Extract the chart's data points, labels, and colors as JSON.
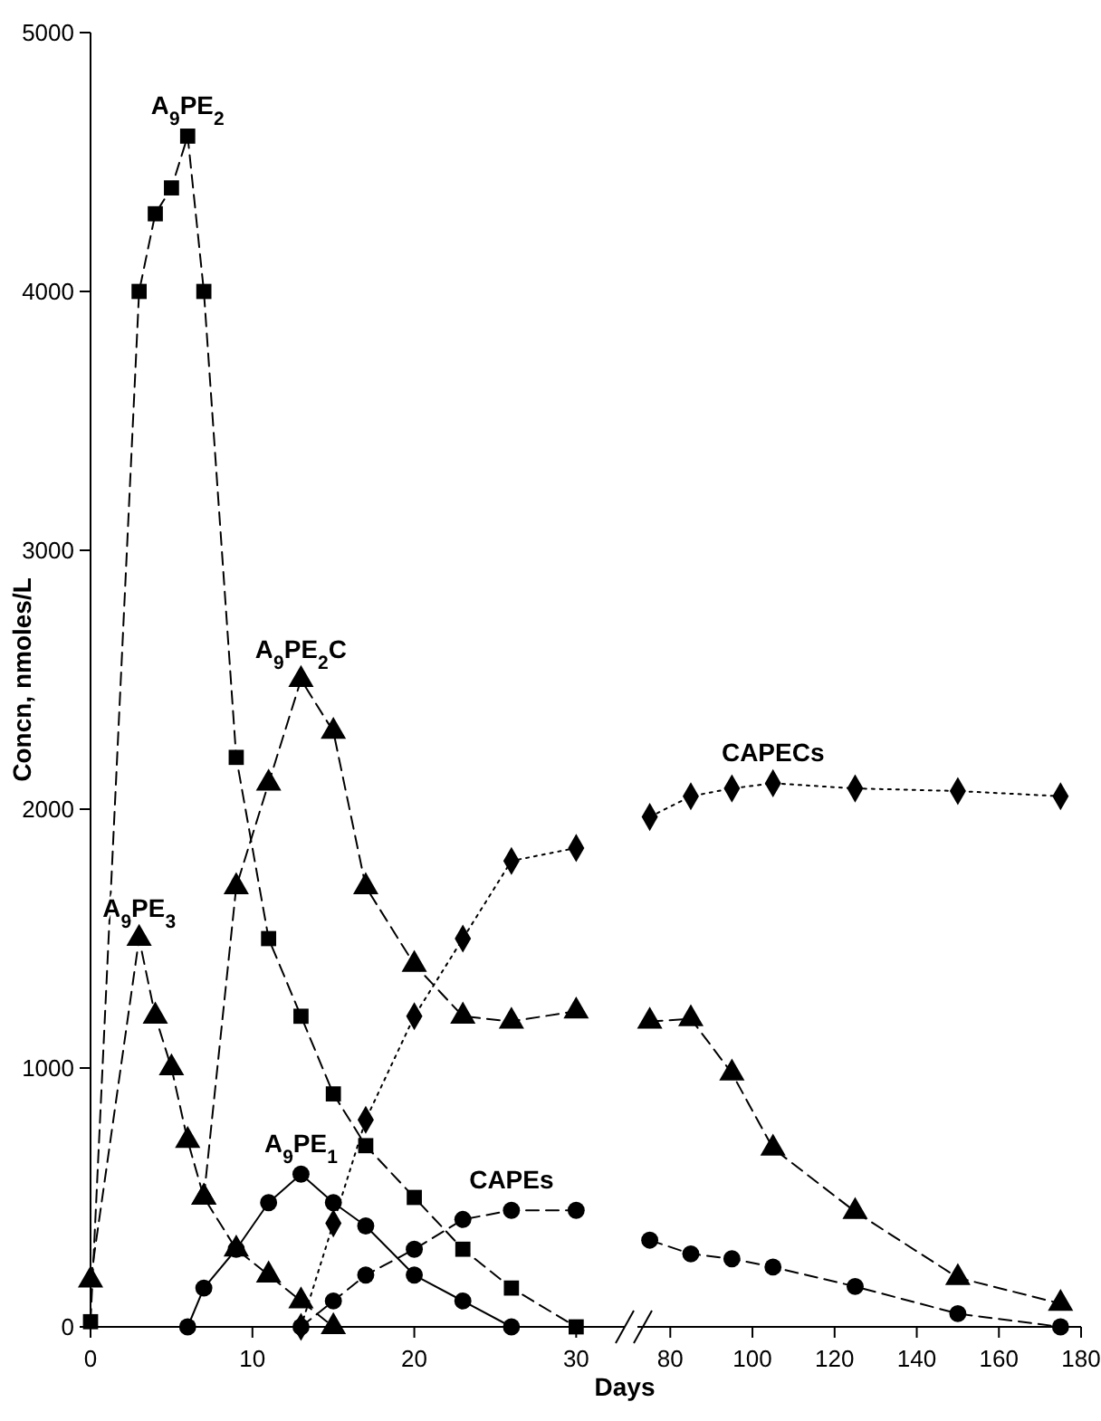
{
  "chart_data": [
    {
      "type": "line",
      "xlabel": "Days",
      "ylabel": "Concn, nmoles/L",
      "xlim": [
        0,
        33
      ],
      "xticks": [
        0,
        10,
        20,
        30
      ],
      "ylim": [
        0,
        5000
      ],
      "yticks": [
        0,
        1000,
        2000,
        3000,
        4000,
        5000
      ],
      "series": [
        {
          "name": "A$_{9}$PE$_{2}$",
          "color": "#000000",
          "marker": "square",
          "line_style": "dashed",
          "x": [
            0,
            3,
            4,
            5,
            6,
            7,
            9,
            11,
            13,
            15,
            17,
            20,
            23,
            26,
            30
          ],
          "values": [
            20,
            4000,
            4300,
            4400,
            4600,
            4000,
            2200,
            1500,
            1200,
            900,
            700,
            500,
            300,
            150,
            0
          ]
        },
        {
          "name": "A$_{9}$PE$_{3}$",
          "color": "#000000",
          "marker": "triangle",
          "line_style": "dashed",
          "x": [
            0,
            3,
            4,
            5,
            6,
            7,
            9,
            11,
            13,
            15
          ],
          "values": [
            180,
            1500,
            1200,
            1000,
            720,
            500,
            300,
            200,
            100,
            0
          ]
        },
        {
          "name": "A$_{9}$PE$_{2}$C",
          "color": "#000000",
          "marker": "triangle",
          "line_style": "dashed",
          "x": [
            7,
            9,
            11,
            13,
            15,
            17,
            20,
            23,
            26,
            30
          ],
          "values": [
            500,
            1700,
            2100,
            2500,
            2300,
            1700,
            1400,
            1200,
            1180,
            1220
          ]
        },
        {
          "name": "A$_{9}$PE$_{1}$",
          "color": "#000000",
          "marker": "circle",
          "line_style": "solid",
          "x": [
            6,
            7,
            9,
            11,
            13,
            15,
            17,
            20,
            23,
            26
          ],
          "values": [
            0,
            150,
            300,
            480,
            590,
            480,
            390,
            200,
            100,
            0
          ]
        },
        {
          "name": "CAPEs",
          "color": "#000000",
          "marker": "circle",
          "line_style": "dashed",
          "x": [
            13,
            15,
            17,
            20,
            23,
            26,
            30
          ],
          "values": [
            0,
            100,
            200,
            300,
            415,
            450,
            450
          ]
        },
        {
          "color": "#000000",
          "marker": "diamond",
          "line_style": "dotted",
          "x": [
            13,
            15,
            17,
            20,
            23,
            26,
            30
          ],
          "values": [
            0,
            400,
            800,
            1200,
            1500,
            1800,
            1850
          ]
        }
      ]
    },
    {
      "type": "line",
      "xlim": [
        72,
        180
      ],
      "xticks": [
        80,
        100,
        120,
        140,
        160,
        180
      ],
      "ylim": [
        0,
        5000
      ],
      "tick_labels": "x",
      "series": [
        {
          "color": "#000000",
          "marker": "triangle",
          "line_style": "dashed",
          "x": [
            75,
            85,
            95,
            105,
            125,
            150,
            175
          ],
          "values": [
            1180,
            1190,
            980,
            690,
            445,
            190,
            90
          ]
        },
        {
          "color": "#000000",
          "marker": "circle",
          "line_style": "dashed",
          "x": [
            75,
            85,
            95,
            105,
            125,
            150,
            175
          ],
          "values": [
            335,
            282,
            263,
            231,
            156,
            51,
            0
          ]
        },
        {
          "name": "CAPECs",
          "color": "#000000",
          "marker": "diamond",
          "line_style": "dotted",
          "x": [
            75,
            85,
            95,
            105,
            125,
            150,
            175
          ],
          "values": [
            1970,
            2050,
            2080,
            2100,
            2080,
            2070,
            2050
          ]
        }
      ]
    }
  ]
}
